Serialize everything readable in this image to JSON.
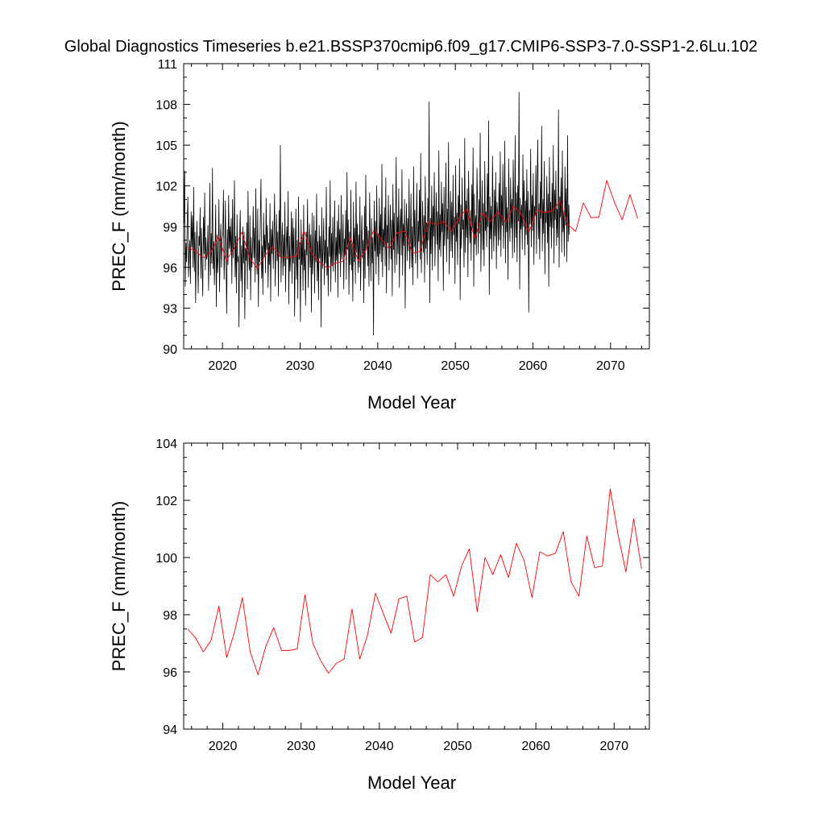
{
  "page": {
    "title": "Global Diagnostics Timeseries b.e21.BSSP370cmip6.f09_g17.CMIP6-SSP3-7.0-SSP1-2.6Lu.102"
  },
  "chart_data": [
    {
      "type": "line",
      "xlabel": "Model Year",
      "ylabel": "PREC_F (mm/month)",
      "xlim": [
        2015,
        2075
      ],
      "ylim": [
        90,
        111
      ],
      "yticks": [
        90,
        93,
        96,
        99,
        102,
        105,
        108,
        111
      ],
      "ytick_labels": [
        "90",
        "93",
        "96",
        "99",
        "102",
        "105",
        "108",
        "111"
      ],
      "xticks": [
        2020,
        2030,
        2040,
        2050,
        2060,
        2070
      ],
      "xtick_labels": [
        "2020",
        "2030",
        "2040",
        "2050",
        "2060",
        "2070"
      ],
      "grid": false,
      "series": [
        {
          "color": "#000000",
          "kind": "monthly",
          "x_start": 2015.04,
          "x_step": 0.0833333,
          "values": [
            99.2,
            103.1,
            94.6,
            97.8,
            96.4,
            99.5,
            101.2,
            95.3,
            97.1,
            98.0,
            94.8,
            100.1,
            97.5,
            99.8,
            96.0,
            101.9,
            95.7,
            98.6,
            93.4,
            97.2,
            99.4,
            96.8,
            94.1,
            98.3,
            97.6,
            100.4,
            95.2,
            98.9,
            96.1,
            93.9,
            99.7,
            97.0,
            101.5,
            95.8,
            98.2,
            96.6,
            96.9,
            99.1,
            94.3,
            97.7,
            102.2,
            95.4,
            98.5,
            96.3,
            103.3,
            95.9,
            97.9,
            94.7,
            97.3,
            100.6,
            93.1,
            98.4,
            95.6,
            96.9,
            101.0,
            94.2,
            97.5,
            99.2,
            96.0,
            98.1,
            98.4,
            101.7,
            95.1,
            97.0,
            100.9,
            96.5,
            92.6,
            98.8,
            96.2,
            101.3,
            97.4,
            99.0,
            97.1,
            99.6,
            94.8,
            101.0,
            96.7,
            97.9,
            102.4,
            95.3,
            98.3,
            94.1,
            99.9,
            96.4,
            96.8,
            91.6,
            98.1,
            100.2,
            95.0,
            97.6,
            93.8,
            99.0,
            96.3,
            98.6,
            92.2,
            97.4,
            96.5,
            99.3,
            94.4,
            101.6,
            97.1,
            95.8,
            99.8,
            93.6,
            98.2,
            96.0,
            97.4,
            100.5,
            96.7,
            98.9,
            94.9,
            101.8,
            97.2,
            95.5,
            100.3,
            93.1,
            98.0,
            96.4,
            99.7,
            102.5,
            95.2,
            97.6,
            94.0,
            100.0,
            96.8,
            98.4,
            95.6,
            101.1,
            97.3,
            99.1,
            94.5,
            97.8,
            96.2,
            100.7,
            93.5,
            98.8,
            97.0,
            99.4,
            95.9,
            98.1,
            101.4,
            94.6,
            97.2,
            99.9,
            96.5,
            98.6,
            93.9,
            100.2,
            96.8,
            105.0,
            94.9,
            97.7,
            99.3,
            95.4,
            98.4,
            96.1,
            100.8,
            94.2,
            97.5,
            99.0,
            96.6,
            101.6,
            93.3,
            98.3,
            95.7,
            97.0,
            100.1,
            94.8,
            99.6,
            96.3,
            98.9,
            92.4,
            97.4,
            100.3,
            95.1,
            98.0,
            93.7,
            101.2,
            96.6,
            97.8,
            92.0,
            99.5,
            96.2,
            98.2,
            94.3,
            100.6,
            95.8,
            97.3,
            93.2,
            98.6,
            96.9,
            101.0,
            94.5,
            97.6,
            99.2,
            96.0,
            98.4,
            92.7,
            100.0,
            95.5,
            97.1,
            99.8,
            94.1,
            98.7,
            96.4,
            101.4,
            95.0,
            97.9,
            93.6,
            99.1,
            96.7,
            98.3,
            91.6,
            100.4,
            95.9,
            97.2,
            99.6,
            94.7,
            98.0,
            96.3,
            101.9,
            95.4,
            97.5,
            93.9,
            99.0,
            96.8,
            102.4,
            94.2,
            98.5,
            96.1,
            99.7,
            95.7,
            97.8,
            100.9,
            94.9,
            98.2,
            96.5,
            99.4,
            93.8,
            100.6,
            97.0,
            98.8,
            95.3,
            101.3,
            96.6,
            97.4,
            99.9,
            94.4,
            98.1,
            96.9,
            100.2,
            95.1,
            103.0,
            97.3,
            99.5,
            94.0,
            98.6,
            96.2,
            101.7,
            95.8,
            97.7,
            93.5,
            100.8,
            96.4,
            98.9,
            94.8,
            102.3,
            97.1,
            99.2,
            95.6,
            98.4,
            96.0,
            101.2,
            94.3,
            97.6,
            99.8,
            96.7,
            98.0,
            93.4,
            100.5,
            95.2,
            102.8,
            97.4,
            99.0,
            96.1,
            98.7,
            94.6,
            101.5,
            97.9,
            95.0,
            99.6,
            96.3,
            98.2,
            91.0,
            100.9,
            97.2,
            99.4,
            95.5,
            102.0,
            96.8,
            98.5,
            94.7,
            101.1,
            97.0,
            99.9,
            96.4,
            103.6,
            95.3,
            98.8,
            97.5,
            100.4,
            96.1,
            102.6,
            94.1,
            99.1,
            97.8,
            101.3,
            95.8,
            98.3,
            100.6,
            96.6,
            99.5,
            93.9,
            102.1,
            97.3,
            100.0,
            95.6,
            98.6,
            104.1,
            96.2,
            99.7,
            97.0,
            101.8,
            94.5,
            98.9,
            100.3,
            96.9,
            103.2,
            95.4,
            99.2,
            97.6,
            101.0,
            93.0,
            98.4,
            100.7,
            96.5,
            99.6,
            97.2,
            102.5,
            95.9,
            98.1,
            101.4,
            96.0,
            99.0,
            94.7,
            103.4,
            97.5,
            100.2,
            96.3,
            98.8,
            102.2,
            95.2,
            99.4,
            97.9,
            101.7,
            96.6,
            104.4,
            95.6,
            98.5,
            100.9,
            97.1,
            99.8,
            94.9,
            102.7,
            97.4,
            99.3,
            96.2,
            101.1,
            98.0,
            108.2,
            93.4,
            99.6,
            97.0,
            102.0,
            95.8,
            100.5,
            98.3,
            103.0,
            96.1,
            99.1,
            101.5,
            97.7,
            100.1,
            95.0,
            104.6,
            97.3,
            99.9,
            96.8,
            102.3,
            98.6,
            100.7,
            94.3,
            101.9,
            97.6,
            99.4,
            103.7,
            96.4,
            100.3,
            98.1,
            105.2,
            95.5,
            99.0,
            101.6,
            97.2,
            100.8,
            96.7,
            102.8,
            98.4,
            99.7,
            94.8,
            103.5,
            97.9,
            100.0,
            96.2,
            101.3,
            99.2,
            104.0,
            93.6,
            100.6,
            97.4,
            102.6,
            98.8,
            99.5,
            96.0,
            105.5,
            97.1,
            100.9,
            98.2,
            101.8,
            95.3,
            103.1,
            99.6,
            97.8,
            100.2,
            96.5,
            102.1,
            98.9,
            104.8,
            94.6,
            101.4,
            97.7,
            99.8,
            96.9,
            103.3,
            100.4,
            97.0,
            101.0,
            98.5,
            105.9,
            95.7,
            99.3,
            102.4,
            97.3,
            100.7,
            96.1,
            103.8,
            98.7,
            100.1,
            97.5,
            102.9,
            99.0,
            106.8,
            94.0,
            101.2,
            98.1,
            100.5,
            96.6,
            104.2,
            99.5,
            97.2,
            101.7,
            98.3,
            103.0,
            95.9,
            100.8,
            99.9,
            97.6,
            102.2,
            98.0,
            104.5,
            96.8,
            101.3,
            99.1,
            103.6,
            97.4,
            100.0,
            105.3,
            96.3,
            101.9,
            98.6,
            100.4,
            95.1,
            104.0,
            99.7,
            97.9,
            102.6,
            98.9,
            101.0,
            96.7,
            103.9,
            100.3,
            97.1,
            105.7,
            98.2,
            101.5,
            96.4,
            102.0,
            99.4,
            108.9,
            94.4,
            101.1,
            98.8,
            100.6,
            97.3,
            104.3,
            99.0,
            102.4,
            96.9,
            100.9,
            98.4,
            103.2,
            97.7,
            101.6,
            92.7,
            100.2,
            99.2,
            104.7,
            97.5,
            101.3,
            98.7,
            102.9,
            96.2,
            100.5,
            99.8,
            103.5,
            97.0,
            101.9,
            105.4,
            98.1,
            100.7,
            96.6,
            102.3,
            99.6,
            106.4,
            97.2,
            101.0,
            98.5,
            103.8,
            95.5,
            100.1,
            99.3,
            102.7,
            97.8,
            101.4,
            94.6,
            104.1,
            99.0,
            100.8,
            97.4,
            102.2,
            98.9,
            105.0,
            96.3,
            101.7,
            99.5,
            103.1,
            97.6,
            100.3,
            98.2,
            107.6,
            96.0,
            101.2,
            99.7,
            102.6,
            97.1,
            104.6,
            98.6,
            100.0,
            96.8,
            103.4,
            99.1,
            101.8,
            96.4,
            105.7,
            97.9,
            100.6,
            98.4
          ]
        },
        {
          "color": "#ff0000",
          "kind": "annual",
          "x_start": 2015.5,
          "x_step": 1,
          "values": [
            97.5,
            97.2,
            96.7,
            97.1,
            98.3,
            96.5,
            97.4,
            98.6,
            96.7,
            95.9,
            96.9,
            97.55,
            96.75,
            96.75,
            96.8,
            98.7,
            97.0,
            96.4,
            95.95,
            96.3,
            96.45,
            98.2,
            96.45,
            97.3,
            98.75,
            98.05,
            97.35,
            98.55,
            98.65,
            97.05,
            97.2,
            99.4,
            99.15,
            99.4,
            98.65,
            99.7,
            100.3,
            98.1,
            100.0,
            99.4,
            100.1,
            99.3,
            100.5,
            99.9,
            98.6,
            100.2,
            100.05,
            100.15,
            100.9,
            99.15,
            98.65,
            100.75,
            99.65,
            99.7,
            102.4,
            100.8,
            99.5,
            101.35,
            99.6
          ]
        }
      ]
    },
    {
      "type": "line",
      "xlabel": "Model Year",
      "ylabel": "PREC_F (mm/month)",
      "xlim": [
        2015,
        2074.5
      ],
      "ylim": [
        94,
        104
      ],
      "yticks": [
        94,
        96,
        98,
        100,
        102,
        104
      ],
      "ytick_labels": [
        "94",
        "96",
        "98",
        "100",
        "102",
        "104"
      ],
      "xticks": [
        2020,
        2030,
        2040,
        2050,
        2060,
        2070
      ],
      "xtick_labels": [
        "2020",
        "2030",
        "2040",
        "2050",
        "2060",
        "2070"
      ],
      "grid": false,
      "series": [
        {
          "color": "#ff0000",
          "kind": "annual",
          "x_start": 2015.5,
          "x_step": 1,
          "values": [
            97.5,
            97.2,
            96.7,
            97.1,
            98.3,
            96.5,
            97.4,
            98.6,
            96.7,
            95.9,
            96.9,
            97.55,
            96.75,
            96.75,
            96.8,
            98.7,
            97.0,
            96.4,
            95.95,
            96.3,
            96.45,
            98.2,
            96.45,
            97.3,
            98.75,
            98.05,
            97.35,
            98.55,
            98.65,
            97.05,
            97.2,
            99.4,
            99.15,
            99.4,
            98.65,
            99.7,
            100.3,
            98.1,
            100.0,
            99.4,
            100.1,
            99.3,
            100.5,
            99.9,
            98.6,
            100.2,
            100.05,
            100.15,
            100.9,
            99.15,
            98.65,
            100.75,
            99.65,
            99.7,
            102.4,
            100.8,
            99.5,
            101.35,
            99.6
          ]
        }
      ]
    }
  ]
}
